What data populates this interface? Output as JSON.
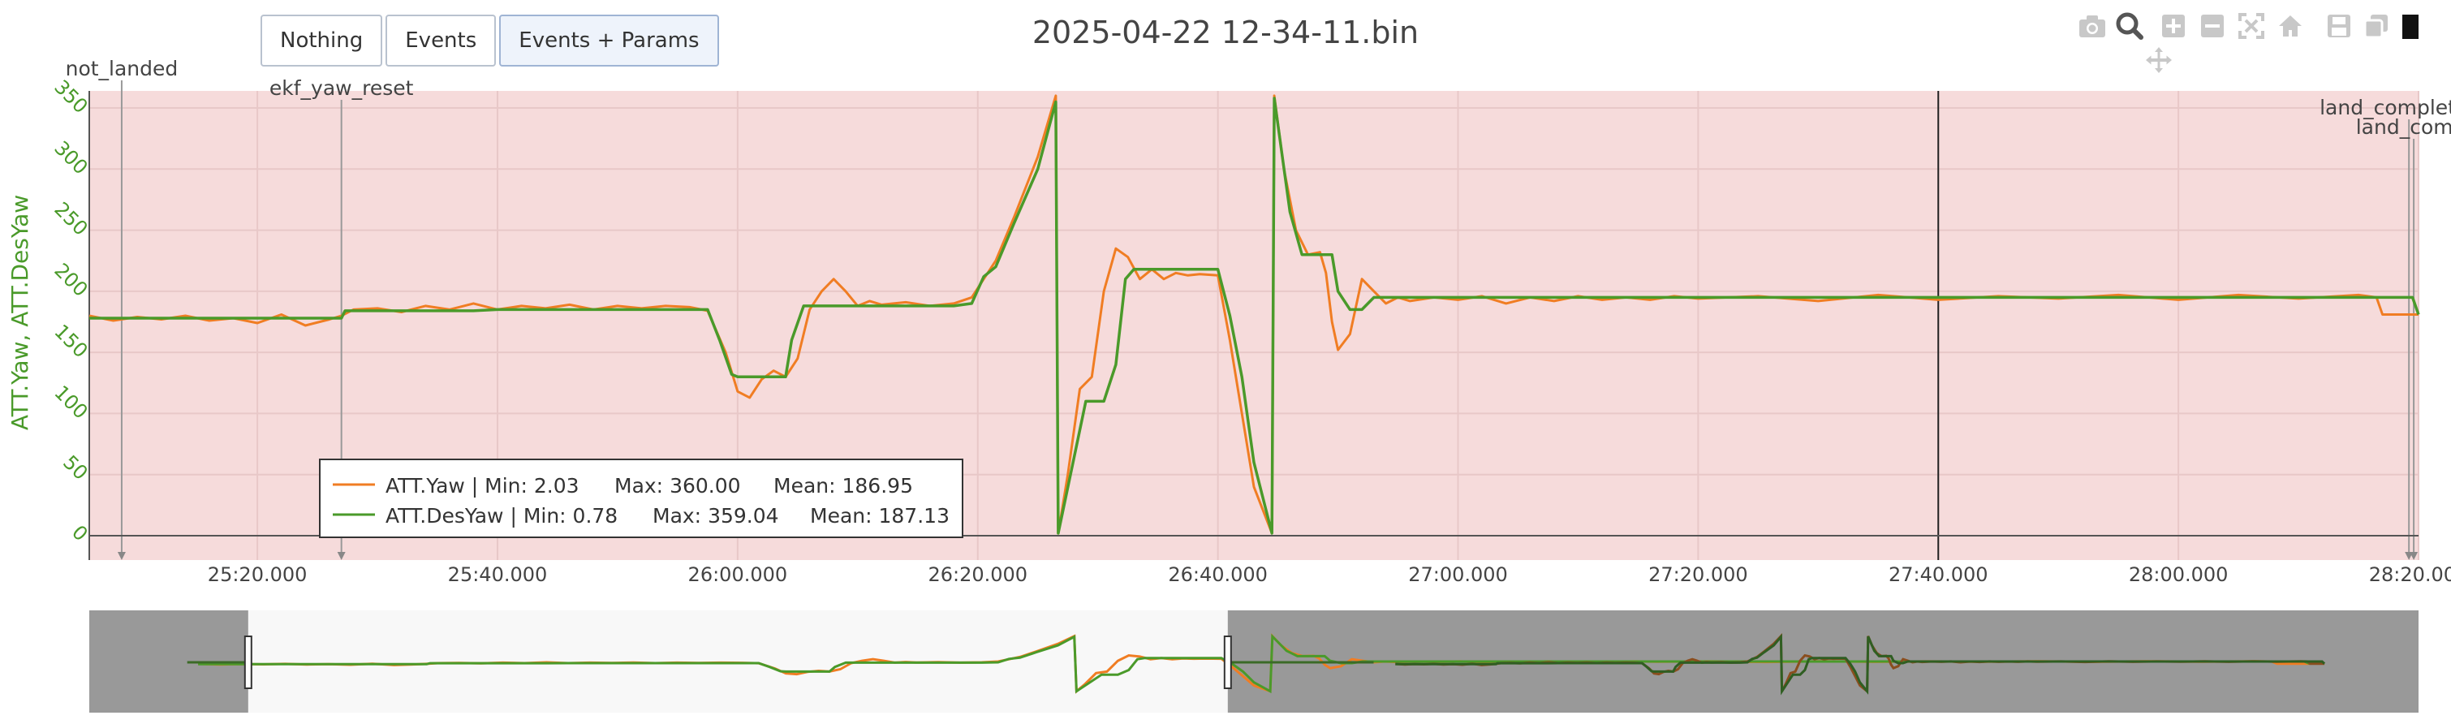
{
  "buttons": [
    {
      "label": "Nothing"
    },
    {
      "label": "Events"
    },
    {
      "label": "Events + Params"
    }
  ],
  "title": "2025-04-22 12-34-11.bin",
  "colors": {
    "yaw": "#f07d23",
    "desyaw": "#4a9a2a",
    "plot_bg": "#f6dbdb",
    "grid": "#e8c8c8",
    "axis_text": "#4a9a2a",
    "mask": "#999999"
  },
  "modebar_icons": [
    "camera-icon",
    "zoom-icon",
    "zoom-in-icon",
    "zoom-out-icon",
    "autoscale-icon",
    "home-icon",
    "save-icon",
    "copy-icon",
    "pan-icon"
  ],
  "chart_data": {
    "type": "line",
    "ylabel": "ATT.Yaw, ATT.DesYaw",
    "xlabel": "",
    "y_ticks": [
      "0",
      "50",
      "100",
      "150",
      "200",
      "250",
      "300",
      "350"
    ],
    "x_ticks": [
      {
        "t": 1520,
        "label": "25:20.000"
      },
      {
        "t": 1540,
        "label": "25:40.000"
      },
      {
        "t": 1560,
        "label": "26:00.000"
      },
      {
        "t": 1580,
        "label": "26:20.000"
      },
      {
        "t": 1600,
        "label": "26:40.000"
      },
      {
        "t": 1620,
        "label": "27:00.000"
      },
      {
        "t": 1640,
        "label": "27:20.000"
      },
      {
        "t": 1660,
        "label": "27:40.000"
      },
      {
        "t": 1680,
        "label": "28:00.000"
      },
      {
        "t": 1700,
        "label": "28:20.000"
      }
    ],
    "xlim": [
      1506,
      1700
    ],
    "ylim": [
      -2,
      378
    ],
    "events": [
      {
        "t": 1508.7,
        "label": "not_landed",
        "label_y": 85
      },
      {
        "t": 1527.0,
        "label": "ekf_yaw_reset",
        "label_y": 109
      },
      {
        "t": 1699.2,
        "label": "land_complete_m",
        "label_y": 133
      },
      {
        "t": 1699.6,
        "label": "land_compl",
        "label_y": 157
      }
    ],
    "cursor_t": 1660,
    "series": [
      {
        "name": "ATT.Yaw",
        "min": "2.03",
        "max": "360.00",
        "mean": "186.95",
        "x": [
          1506,
          1508,
          1510,
          1512,
          1514,
          1516,
          1518,
          1520,
          1522,
          1524,
          1526,
          1527,
          1528,
          1530,
          1532,
          1534,
          1536,
          1538,
          1540,
          1542,
          1544,
          1546,
          1548,
          1550,
          1552,
          1554,
          1556,
          1557.5,
          1559,
          1560,
          1561,
          1562,
          1563,
          1564,
          1565,
          1566,
          1567,
          1568,
          1569,
          1570,
          1571,
          1572,
          1574,
          1576,
          1578,
          1579.5,
          1580.5,
          1581.5,
          1583,
          1585,
          1586.5,
          1586.7,
          1587.5,
          1588.5,
          1589.5,
          1590.5,
          1591.5,
          1592.5,
          1593.5,
          1594.5,
          1595.5,
          1596.5,
          1597.5,
          1598.5,
          1600,
          1601,
          1602,
          1603,
          1604.5,
          1604.7,
          1605.5,
          1606.5,
          1607.5,
          1608.5,
          1609,
          1609.5,
          1610,
          1611,
          1612,
          1613,
          1614,
          1615,
          1616,
          1618,
          1620,
          1622,
          1624,
          1626,
          1628,
          1630,
          1632,
          1634,
          1636,
          1638,
          1640,
          1645,
          1650,
          1655,
          1660,
          1665,
          1670,
          1675,
          1680,
          1685,
          1690,
          1695,
          1696.5,
          1697,
          1698,
          1700
        ],
        "y": [
          180,
          176,
          179,
          177,
          180,
          176,
          178,
          174,
          181,
          172,
          177,
          180,
          185,
          186,
          183,
          188,
          185,
          190,
          185,
          188,
          186,
          189,
          185,
          188,
          186,
          188,
          187,
          184,
          150,
          118,
          113,
          128,
          135,
          130,
          145,
          185,
          200,
          210,
          200,
          188,
          192,
          189,
          191,
          188,
          190,
          195,
          210,
          225,
          260,
          310,
          360,
          2,
          50,
          120,
          130,
          200,
          235,
          228,
          210,
          218,
          210,
          215,
          213,
          214,
          213,
          160,
          100,
          40,
          2,
          360,
          300,
          250,
          230,
          232,
          215,
          175,
          152,
          165,
          210,
          200,
          190,
          195,
          192,
          195,
          193,
          196,
          190,
          195,
          192,
          196,
          193,
          195,
          193,
          196,
          194,
          196,
          192,
          197,
          193,
          196,
          194,
          197,
          193,
          197,
          194,
          197,
          195,
          181,
          181,
          181
        ]
      },
      {
        "name": "ATT.DesYaw",
        "min": "0.78",
        "max": "359.04",
        "mean": "187.13",
        "x": [
          1506,
          1508,
          1510,
          1512,
          1514,
          1516,
          1518,
          1520,
          1522,
          1524,
          1526,
          1527,
          1527.3,
          1530,
          1532,
          1534,
          1536,
          1538,
          1540,
          1542,
          1544,
          1546,
          1548,
          1550,
          1552,
          1554,
          1556,
          1557.5,
          1558.5,
          1559.5,
          1560,
          1561,
          1562,
          1563,
          1564,
          1564.5,
          1565.5,
          1566,
          1567,
          1568,
          1569,
          1570,
          1572,
          1574,
          1576,
          1578,
          1579.5,
          1580.5,
          1581.5,
          1583,
          1585,
          1586.5,
          1586.7,
          1589,
          1590.5,
          1591.5,
          1592.3,
          1593,
          1594,
          1595,
          1596,
          1597,
          1598,
          1599,
          1600,
          1601,
          1602,
          1603,
          1604.5,
          1604.7,
          1606,
          1607,
          1608,
          1609,
          1609.5,
          1610,
          1611,
          1612,
          1613,
          1614,
          1620,
          1640,
          1660,
          1680,
          1699.5,
          1700
        ],
        "y": [
          178,
          178,
          178,
          178,
          178,
          178,
          178,
          178,
          178,
          178,
          178,
          178,
          184,
          184,
          184,
          184,
          184,
          184,
          185,
          185,
          185,
          185,
          185,
          185,
          185,
          185,
          185,
          185,
          160,
          132,
          130,
          130,
          130,
          130,
          130,
          160,
          188,
          188,
          188,
          188,
          188,
          188,
          188,
          188,
          188,
          188,
          190,
          212,
          220,
          255,
          300,
          355,
          2,
          110,
          110,
          140,
          210,
          218,
          218,
          218,
          218,
          218,
          218,
          218,
          218,
          180,
          130,
          60,
          2,
          358,
          265,
          230,
          230,
          230,
          230,
          200,
          185,
          185,
          195,
          195,
          195,
          195,
          195,
          195,
          195,
          181
        ]
      }
    ],
    "overview": {
      "xlim": [
        1496,
        1710
      ],
      "window": [
        1510.6,
        1600.6
      ]
    }
  }
}
